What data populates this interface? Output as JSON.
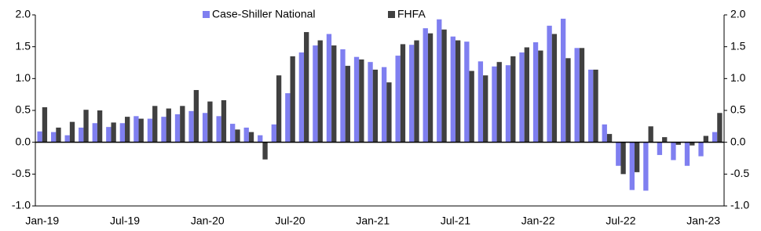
{
  "chart_data": {
    "type": "bar",
    "categories": [
      "Jan-19",
      null,
      null,
      null,
      null,
      null,
      "Jul-19",
      null,
      null,
      null,
      null,
      null,
      "Jan-20",
      null,
      null,
      null,
      null,
      null,
      "Jul-20",
      null,
      null,
      null,
      null,
      null,
      "Jan-21",
      null,
      null,
      null,
      null,
      null,
      "Jul-21",
      null,
      null,
      null,
      null,
      null,
      "Jan-22",
      null,
      null,
      null,
      null,
      null,
      "Jul-22",
      null,
      null,
      null,
      null,
      null,
      "Jan-23",
      null
    ],
    "series": [
      {
        "name": "Case-Shiller National",
        "color": "#7f7ff0",
        "values": [
          0.17,
          0.16,
          0.11,
          0.23,
          0.3,
          0.24,
          0.3,
          0.41,
          0.37,
          0.4,
          0.44,
          0.49,
          0.46,
          0.41,
          0.29,
          0.23,
          0.11,
          0.28,
          0.77,
          1.41,
          1.52,
          1.7,
          1.46,
          1.34,
          1.26,
          1.18,
          1.36,
          1.53,
          1.79,
          1.93,
          1.66,
          1.58,
          1.27,
          1.19,
          1.21,
          1.41,
          1.57,
          1.83,
          1.94,
          1.48,
          1.14,
          0.28,
          -0.37,
          -0.75,
          -0.76,
          -0.2,
          -0.28,
          -0.37,
          -0.22,
          0.16
        ]
      },
      {
        "name": "FHFA",
        "color": "#404040",
        "values": [
          0.55,
          0.23,
          0.32,
          0.51,
          0.5,
          0.31,
          0.4,
          0.37,
          0.57,
          0.53,
          0.57,
          0.82,
          0.64,
          0.66,
          0.2,
          0.16,
          -0.27,
          1.05,
          1.35,
          1.73,
          1.6,
          1.52,
          1.2,
          1.3,
          1.14,
          0.94,
          1.54,
          1.6,
          1.71,
          1.77,
          1.6,
          1.12,
          1.05,
          1.26,
          1.35,
          1.49,
          1.44,
          1.7,
          1.32,
          1.48,
          1.14,
          0.13,
          -0.5,
          -0.47,
          0.25,
          0.08,
          -0.04,
          -0.05,
          0.1,
          0.46
        ]
      }
    ],
    "ylim": [
      -1.0,
      2.0
    ],
    "yticks": [
      {
        "value": -1.0,
        "label": "-1.0"
      },
      {
        "value": -0.5,
        "label": "-0.5"
      },
      {
        "value": 0,
        "label": "0.0"
      },
      {
        "value": 0.5,
        "label": "0.5"
      },
      {
        "value": 1.0,
        "label": "1.0"
      },
      {
        "value": 1.5,
        "label": "1.5"
      },
      {
        "value": 2.0,
        "label": "2.0"
      }
    ],
    "y2lim": [
      -1.0,
      2.0
    ],
    "y2ticks": [
      {
        "value": -1.0,
        "label": "-1.0"
      },
      {
        "value": -0.5,
        "label": "-0.5"
      },
      {
        "value": 0,
        "label": "0.0"
      },
      {
        "value": 0.5,
        "label": "0.5"
      },
      {
        "value": 1.0,
        "label": "1.0"
      },
      {
        "value": 1.5,
        "label": "1.5"
      },
      {
        "value": 2.0,
        "label": "2.0"
      }
    ],
    "legend": "top-center"
  }
}
